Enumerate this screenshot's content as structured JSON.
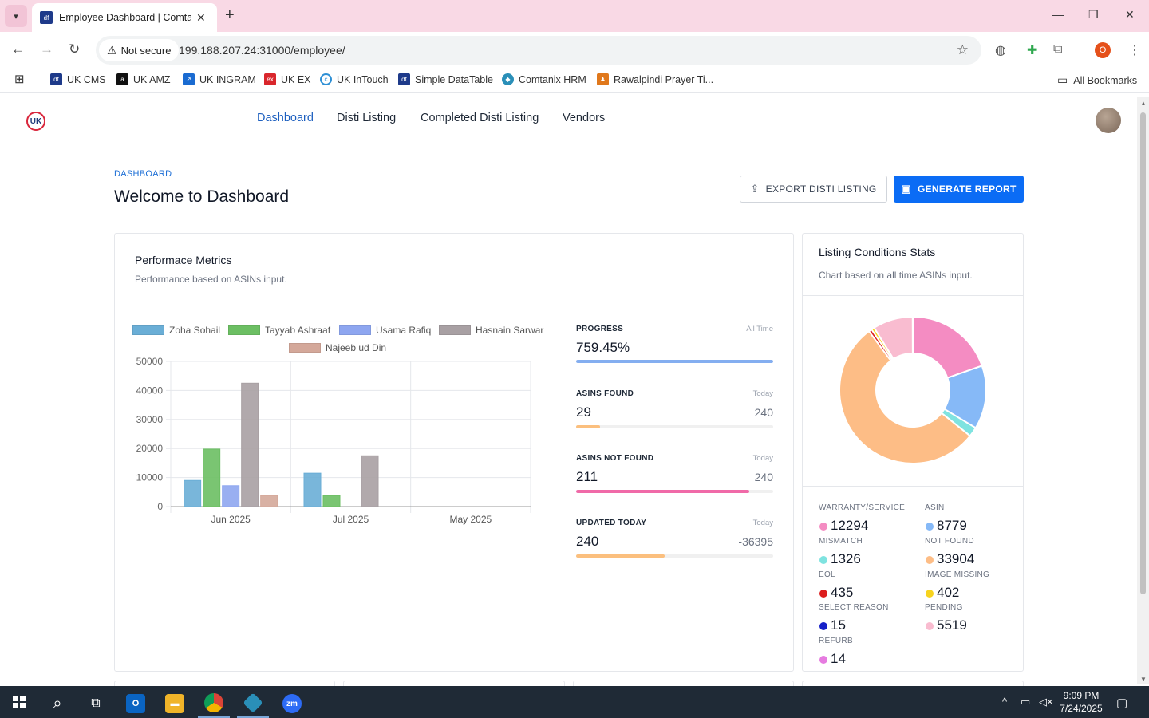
{
  "browser": {
    "tab_title": "Employee Dashboard | Comtanix",
    "security_label": "Not secure",
    "url": "199.188.207.24:31000/employee/",
    "profile_initial": "O",
    "bookmarks": [
      {
        "label": "UK CMS",
        "color": "#1e3a8a",
        "icon": "df-icon"
      },
      {
        "label": "UK AMZ",
        "color": "#111111",
        "icon": "amazon-icon"
      },
      {
        "label": "UK INGRAM",
        "color": "#1a6bd1",
        "icon": "ingram-icon"
      },
      {
        "label": "UK EX",
        "color": "#d9262c",
        "icon": "ex-icon"
      },
      {
        "label": "UK InTouch",
        "color": "#2d8fd5",
        "icon": "intouch-icon"
      },
      {
        "label": "Simple DataTable",
        "color": "#1e3a8a",
        "icon": "df-icon"
      },
      {
        "label": "Comtanix HRM",
        "color": "#2a8fb8",
        "icon": "comtanix-icon"
      },
      {
        "label": "Rawalpindi Prayer Ti...",
        "color": "#e0781c",
        "icon": "prayer-icon"
      }
    ],
    "all_bookmarks_label": "All Bookmarks"
  },
  "app": {
    "nav": [
      {
        "label": "Dashboard",
        "active": true
      },
      {
        "label": "Disti Listing",
        "active": false
      },
      {
        "label": "Completed Disti Listing",
        "active": false
      },
      {
        "label": "Vendors",
        "active": false
      }
    ],
    "breadcrumb": "DASHBOARD",
    "title": "Welcome to Dashboard",
    "export_button": "EXPORT DISTI LISTING",
    "generate_button": "GENERATE REPORT"
  },
  "performance": {
    "title": "Performace Metrics",
    "subtitle": "Performance based on ASINs input."
  },
  "chart_data": [
    {
      "type": "bar",
      "categories": [
        "Jun 2025",
        "Jul 2025",
        "May 2025"
      ],
      "series": [
        {
          "name": "Zoha Sohail",
          "color": "#6aaed6",
          "values": [
            9000,
            11500,
            0
          ]
        },
        {
          "name": "Tayyab Ashraaf",
          "color": "#6cbf63",
          "values": [
            19800,
            3800,
            0
          ]
        },
        {
          "name": "Usama Rafiq",
          "color": "#8ea6f0",
          "values": [
            7200,
            0,
            0
          ]
        },
        {
          "name": "Hasnain Sarwar",
          "color": "#a8a0a3",
          "values": [
            42500,
            17500,
            0
          ]
        },
        {
          "name": "Najeeb ud Din",
          "color": "#d4a89a",
          "values": [
            3800,
            0,
            0
          ]
        }
      ],
      "yticks": [
        "0",
        "10000",
        "20000",
        "30000",
        "40000",
        "50000"
      ],
      "ylim": [
        0,
        50000
      ],
      "legend": "top",
      "grid": true
    },
    {
      "type": "pie",
      "variant": "doughnut",
      "categories": [
        "WARRANTY/SERVICE",
        "ASIN",
        "MISMATCH",
        "NOT FOUND",
        "EOL",
        "IMAGE MISSING",
        "SELECT REASON",
        "PENDING",
        "REFURB"
      ],
      "values": [
        12294,
        8779,
        1326,
        33904,
        435,
        402,
        15,
        5519,
        14
      ],
      "colors": [
        "#f48cc2",
        "#86b9f7",
        "#7fe3e0",
        "#fdbd86",
        "#dc1e1e",
        "#f7d31e",
        "#1620c8",
        "#f9bcd0",
        "#e67be0"
      ]
    }
  ],
  "metrics": [
    {
      "label": "PROGRESS",
      "period": "All Time",
      "value": "759.45%",
      "target": "",
      "fill": 1.0,
      "color": "#84aef0"
    },
    {
      "label": "ASINS FOUND",
      "period": "Today",
      "value": "29",
      "target": "240",
      "fill": 0.12,
      "color": "#fbbf7e"
    },
    {
      "label": "ASINS NOT FOUND",
      "period": "Today",
      "value": "211",
      "target": "240",
      "fill": 0.88,
      "color": "#f06aa8"
    },
    {
      "label": "UPDATED TODAY",
      "period": "Today",
      "value": "240",
      "target": "-36395",
      "fill": 0.45,
      "color": "#fbbf7e"
    }
  ],
  "listing": {
    "title": "Listing Conditions Stats",
    "subtitle": "Chart based on all time ASINs input.",
    "stats": [
      {
        "label": "WARRANTY/SERVICE",
        "value": "12294",
        "color": "#f48cc2"
      },
      {
        "label": "ASIN",
        "value": "8779",
        "color": "#86b9f7"
      },
      {
        "label": "MISMATCH",
        "value": "1326",
        "color": "#7fe3e0"
      },
      {
        "label": "NOT FOUND",
        "value": "33904",
        "color": "#fdbd86"
      },
      {
        "label": "EOL",
        "value": "435",
        "color": "#dc1e1e"
      },
      {
        "label": "IMAGE MISSING",
        "value": "402",
        "color": "#f7d31e"
      },
      {
        "label": "SELECT REASON",
        "value": "15",
        "color": "#1620c8"
      },
      {
        "label": "PENDING",
        "value": "5519",
        "color": "#f9bcd0"
      },
      {
        "label": "REFURB",
        "value": "14",
        "color": "#e67be0"
      }
    ]
  },
  "taskbar": {
    "time": "9:09 PM",
    "date": "7/24/2025",
    "apps": [
      {
        "name": "search-icon"
      },
      {
        "name": "task-view-icon"
      },
      {
        "name": "outlook-icon"
      },
      {
        "name": "file-explorer-icon"
      },
      {
        "name": "chrome-icon"
      },
      {
        "name": "app-icon"
      },
      {
        "name": "zoom-icon"
      }
    ]
  }
}
